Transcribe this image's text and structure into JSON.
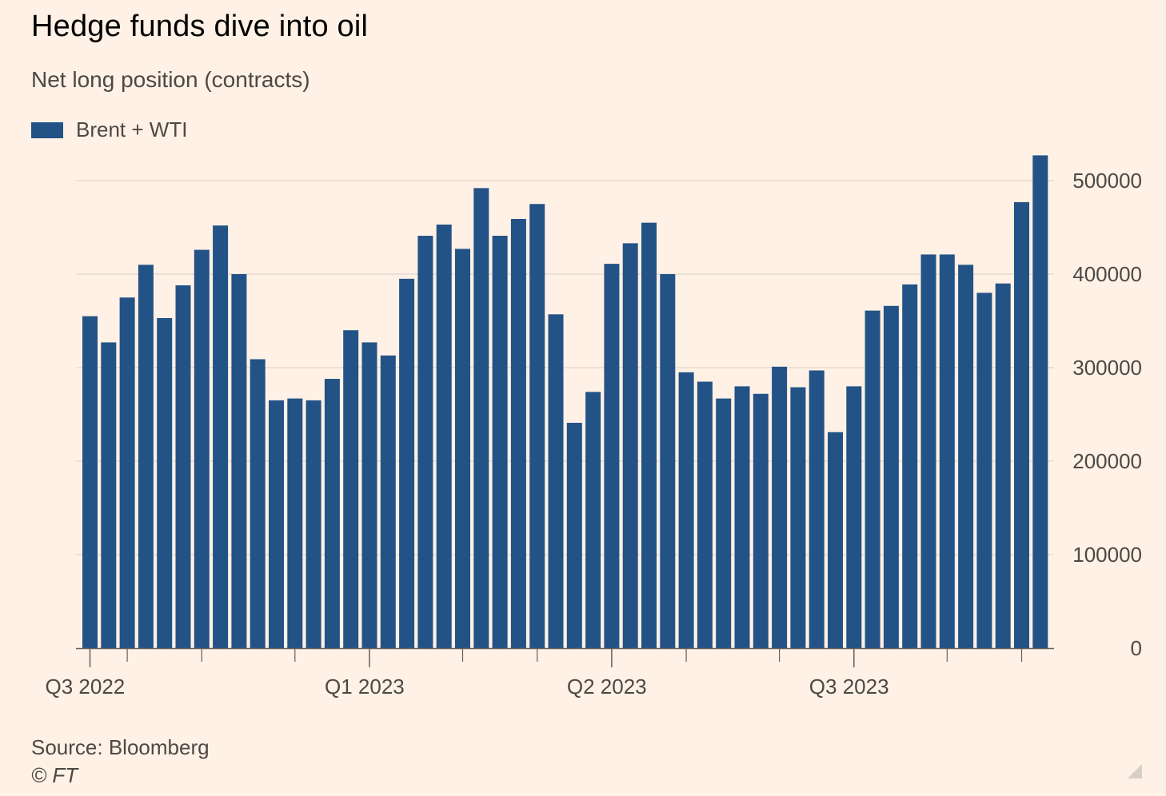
{
  "header": {
    "title": "Hedge funds dive into oil",
    "subtitle": "Net long position (contracts)"
  },
  "legend": {
    "label": "Brent + WTI"
  },
  "footer": {
    "source": "Source: Bloomberg",
    "copyright": "© FT"
  },
  "colors": {
    "bar": "#235286",
    "background": "#FFF1E5",
    "grid": "#e6d9ce",
    "axis": "#66605c",
    "tick_text": "#4d4845"
  },
  "chart_data": {
    "type": "bar",
    "series": [
      {
        "name": "Brent + WTI",
        "values": [
          355000,
          327000,
          375000,
          410000,
          353000,
          388000,
          426000,
          452000,
          400000,
          309000,
          265000,
          267000,
          265000,
          288000,
          340000,
          327000,
          313000,
          395000,
          441000,
          453000,
          427000,
          492000,
          441000,
          459000,
          475000,
          357000,
          241000,
          274000,
          411000,
          433000,
          455000,
          400000,
          295000,
          285000,
          267000,
          280000,
          272000,
          301000,
          279000,
          297000,
          231000,
          280000,
          361000,
          366000,
          389000,
          421000,
          421000,
          410000,
          380000,
          390000,
          477000,
          527000
        ]
      }
    ],
    "ylim": [
      0,
      500000
    ],
    "yticks": [
      "500000",
      "400000",
      "300000",
      "200000",
      "100000",
      "0"
    ],
    "ytick_values": [
      500000,
      400000,
      300000,
      200000,
      100000,
      0
    ],
    "xtick_labels": [
      "Q3 2022",
      "Q1 2023",
      "Q2 2023",
      "Q3 2023"
    ],
    "xtick_label_indices": [
      0,
      15,
      28,
      41
    ],
    "minor_tick_indices": [
      2,
      6,
      11,
      20,
      24,
      32,
      37,
      46,
      50
    ],
    "y_axis_position": "right",
    "grid": true
  }
}
